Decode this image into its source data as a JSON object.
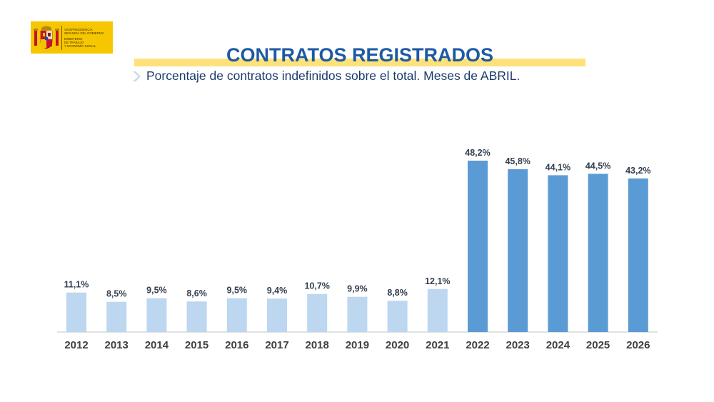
{
  "header": {
    "logo": {
      "lines": [
        "VICEPRESIDENCIA",
        "SEGUNDA DEL GOBIERNO",
        "MINISTERIO",
        "DE TRABAJO",
        "Y ECONOMÍA SOCIAL"
      ],
      "icon": "spain-coat-of-arms-icon"
    },
    "title": "CONTRATOS REGISTRADOS",
    "subtitle": "Porcentaje de contratos indefinidos sobre el total. Meses de ABRIL.",
    "subtitle_icon": "chevron-right-icon"
  },
  "colors": {
    "title": "#1e5aa3",
    "title_band": "#fde27b",
    "logo_bg": "#f6c700",
    "bar_light": "#bcd7ef",
    "bar_dark": "#5b9bd5",
    "label": "#333f50",
    "axis": "#d9d9d9"
  },
  "chart_data": {
    "type": "bar",
    "categories": [
      "2012",
      "2013",
      "2014",
      "2015",
      "2016",
      "2017",
      "2018",
      "2019",
      "2020",
      "2021",
      "2022",
      "2023",
      "2024",
      "2025",
      "2026"
    ],
    "values": [
      11.1,
      8.5,
      9.5,
      8.6,
      9.5,
      9.4,
      10.7,
      9.9,
      8.8,
      12.1,
      48.2,
      45.8,
      44.1,
      44.5,
      43.2
    ],
    "labels": [
      "11,1%",
      "8,5%",
      "9,5%",
      "8,6%",
      "9,5%",
      "9,4%",
      "10,7%",
      "9,9%",
      "8,8%",
      "12,1%",
      "48,2%",
      "45,8%",
      "44,1%",
      "44,5%",
      "43,2%"
    ],
    "highlight_from_index": 10,
    "ylim": [
      0,
      55
    ],
    "grid": false,
    "xlabel": "",
    "ylabel": ""
  }
}
